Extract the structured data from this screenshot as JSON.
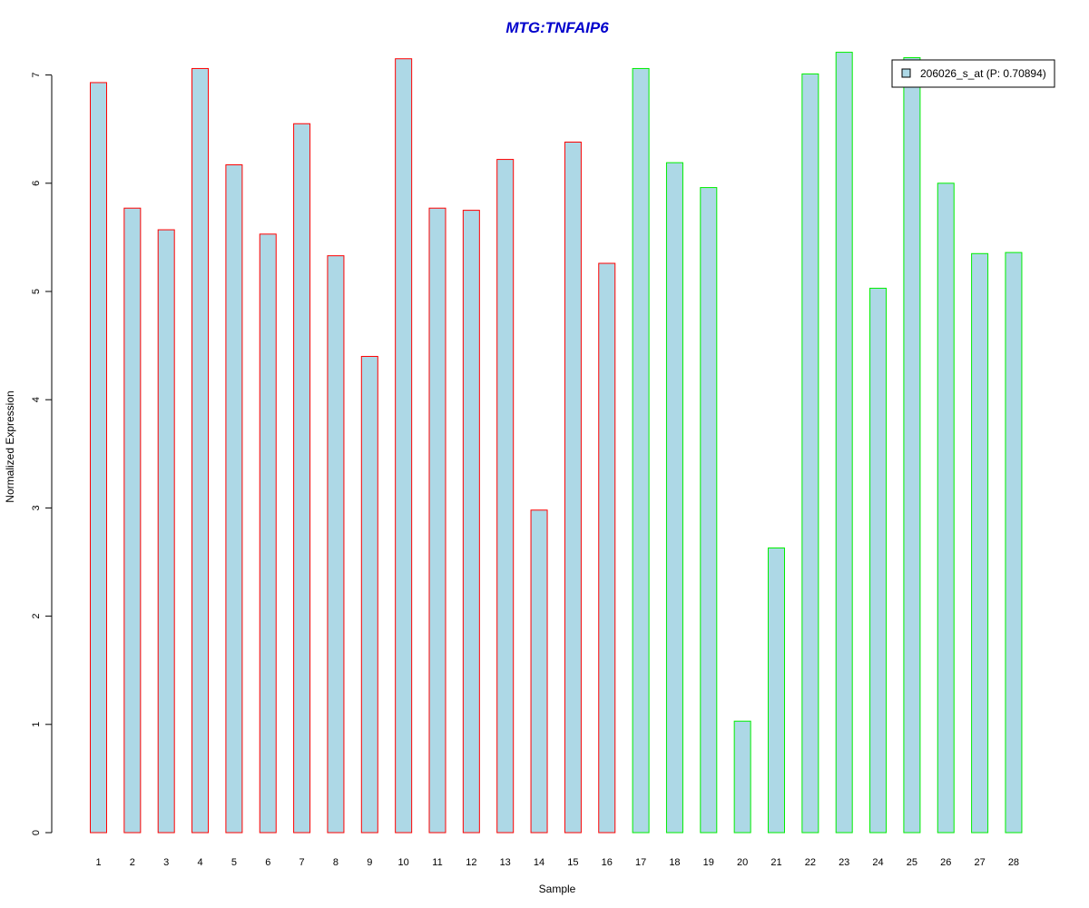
{
  "chart_data": {
    "type": "bar",
    "title": "MTG:TNFAIP6",
    "xlabel": "Sample",
    "ylabel": "Normalized Expression",
    "ylim": [
      0,
      7.2
    ],
    "yticks": [
      0,
      1,
      2,
      3,
      4,
      5,
      6,
      7
    ],
    "categories": [
      "1",
      "2",
      "3",
      "4",
      "5",
      "6",
      "7",
      "8",
      "9",
      "10",
      "11",
      "12",
      "13",
      "14",
      "15",
      "16",
      "17",
      "18",
      "19",
      "20",
      "21",
      "22",
      "23",
      "24",
      "25",
      "26",
      "27",
      "28"
    ],
    "values": [
      6.93,
      5.77,
      5.57,
      7.06,
      6.17,
      5.53,
      6.55,
      5.33,
      4.4,
      7.15,
      5.77,
      5.75,
      6.22,
      2.98,
      6.38,
      5.26,
      7.06,
      6.19,
      5.96,
      1.03,
      2.63,
      7.01,
      7.21,
      5.03,
      7.16,
      6.0,
      5.35,
      5.36
    ],
    "bar_fill": "#add8e6",
    "groups": [
      {
        "from": 1,
        "to": 16,
        "border_color": "#ff0000"
      },
      {
        "from": 17,
        "to": 28,
        "border_color": "#00ee00"
      }
    ],
    "legend": {
      "placement": "top-right",
      "label": "206026_s_at (P: 0.70894)"
    },
    "title_color": "#0000cc",
    "grid": false
  }
}
